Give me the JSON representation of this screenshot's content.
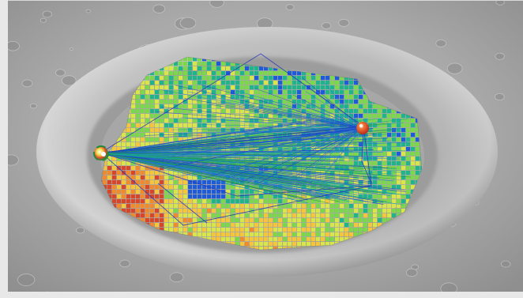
{
  "view": {
    "surface_colors": {
      "plain_light": "#bdbdbd",
      "plain_dark": "#8c8c8c",
      "crater_floor": "#9e9e9e",
      "rim_highlight": "#e6e6e6",
      "rim_shadow": "#6e6e6e"
    },
    "heatmap_colors": [
      "#1e5bd8",
      "#1fb58a",
      "#7bd84a",
      "#d8e64a",
      "#f5c63a",
      "#f08a2a",
      "#d8462a"
    ],
    "ray_colors": [
      "#1b3fd0",
      "#1e7ad8",
      "#17a9a2",
      "#2a9b3a"
    ],
    "markers": [
      {
        "name": "left-sensor-marker-icon",
        "colors": [
          "#1f8a3a",
          "#f2e14a",
          "#e0482a",
          "#ffffff"
        ]
      },
      {
        "name": "right-sensor-marker-icon",
        "colors": [
          "#c0281e",
          "#f07a3a",
          "#ffffff"
        ]
      }
    ]
  }
}
